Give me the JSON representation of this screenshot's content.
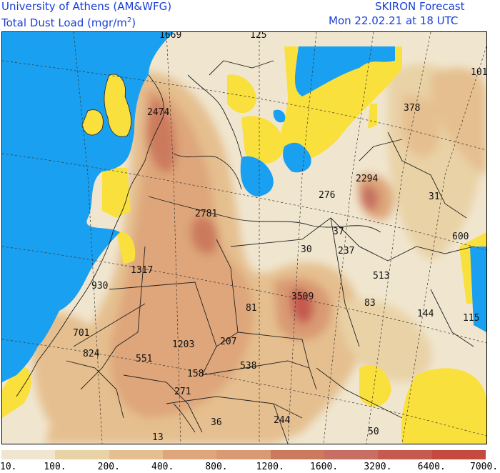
{
  "header": {
    "institution": "University of Athens (AM&WFG)",
    "quantity": "Total Dust Load (mgr/m",
    "quantity_sup": "2",
    "quantity_end": ")",
    "model": "SKIRON Forecast",
    "valid_time": "Mon 22.02.21 at 18 UTC"
  },
  "map": {
    "colors": {
      "sea": "#1aa0f0",
      "low": "#f0e6cf",
      "yellow": "#f9e03c",
      "border": "#222222"
    },
    "values": [
      "1669",
      "125",
      "101",
      "2474",
      "378",
      "2294",
      "31",
      "276",
      "2781",
      "37",
      "600",
      "30",
      "237",
      "1317",
      "513",
      "930",
      "3509",
      "81",
      "83",
      "144",
      "115",
      "701",
      "207",
      "1203",
      "824",
      "551",
      "538",
      "158",
      "271",
      "36",
      "244",
      "50",
      "13"
    ]
  },
  "legend": {
    "colors": [
      "#f0e6cf",
      "#e9d2a6",
      "#e5bf8f",
      "#dea67a",
      "#d99a73",
      "#cc7a5d",
      "#c66f62",
      "#c55a4f",
      "#c44a40"
    ],
    "labels": [
      "10.",
      "100.",
      "200.",
      "400.",
      "800.",
      "1200.",
      "1600.",
      "3200.",
      "6400.",
      "7000."
    ]
  }
}
